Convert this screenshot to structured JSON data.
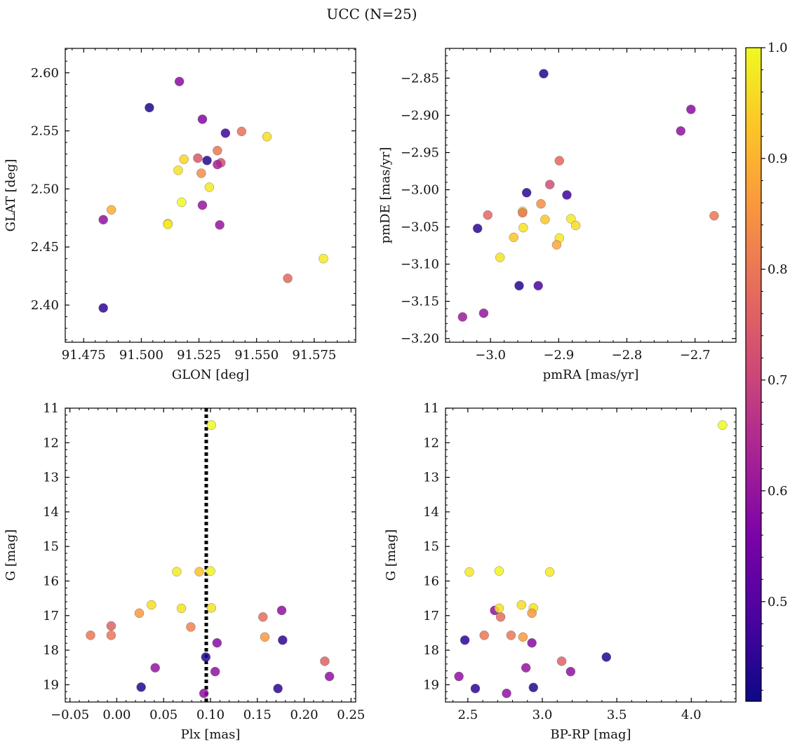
{
  "figure": {
    "title": "UCC (N=25)"
  },
  "colorbar": {
    "cmap": "plasma",
    "range": [
      0.41,
      1.0
    ],
    "ticks": [
      0.5,
      0.6,
      0.7,
      0.8,
      0.9,
      1.0
    ],
    "tick_labels": [
      "0.5",
      "0.6",
      "0.7",
      "0.8",
      "0.9",
      "1.0"
    ]
  },
  "chart_data": [
    {
      "type": "scatter",
      "xlabel": "GLON [deg]",
      "ylabel": "GLAT [deg]",
      "xlim": [
        91.467,
        91.593
      ],
      "ylim": [
        2.368,
        2.621
      ],
      "xticks": [
        91.475,
        91.5,
        91.525,
        91.55,
        91.575
      ],
      "xtick_labels": [
        "91.475",
        "91.500",
        "91.525",
        "91.550",
        "91.575"
      ],
      "yticks": [
        2.4,
        2.45,
        2.5,
        2.55,
        2.6
      ],
      "ytick_labels": [
        "2.40",
        "2.45",
        "2.50",
        "2.55",
        "2.60"
      ],
      "x_minor_step": 0.005,
      "y_minor_step": 0.01,
      "points": [
        {
          "x": 91.5165,
          "y": 2.5925,
          "c": 0.58
        },
        {
          "x": 91.5035,
          "y": 2.57,
          "c": 0.43
        },
        {
          "x": 91.5265,
          "y": 2.56,
          "c": 0.57
        },
        {
          "x": 91.5365,
          "y": 2.548,
          "c": 0.47
        },
        {
          "x": 91.5435,
          "y": 2.5495,
          "c": 0.79
        },
        {
          "x": 91.5545,
          "y": 2.545,
          "c": 0.96
        },
        {
          "x": 91.533,
          "y": 2.533,
          "c": 0.8
        },
        {
          "x": 91.5245,
          "y": 2.5265,
          "c": 0.74
        },
        {
          "x": 91.5185,
          "y": 2.5255,
          "c": 0.95
        },
        {
          "x": 91.5285,
          "y": 2.5245,
          "c": 0.44
        },
        {
          "x": 91.5345,
          "y": 2.5225,
          "c": 0.72
        },
        {
          "x": 91.533,
          "y": 2.521,
          "c": 0.63
        },
        {
          "x": 91.516,
          "y": 2.516,
          "c": 0.97
        },
        {
          "x": 91.526,
          "y": 2.5135,
          "c": 0.84
        },
        {
          "x": 91.5295,
          "y": 2.5015,
          "c": 0.98
        },
        {
          "x": 91.5175,
          "y": 2.4885,
          "c": 1.0
        },
        {
          "x": 91.5265,
          "y": 2.486,
          "c": 0.6
        },
        {
          "x": 91.487,
          "y": 2.482,
          "c": 0.89
        },
        {
          "x": 91.4835,
          "y": 2.4735,
          "c": 0.59
        },
        {
          "x": 91.5115,
          "y": 2.47,
          "c": 0.9
        },
        {
          "x": 91.5115,
          "y": 2.4695,
          "c": 0.99
        },
        {
          "x": 91.534,
          "y": 2.469,
          "c": 0.6
        },
        {
          "x": 91.579,
          "y": 2.44,
          "c": 0.98
        },
        {
          "x": 91.5635,
          "y": 2.423,
          "c": 0.77
        },
        {
          "x": 91.4835,
          "y": 2.3975,
          "c": 0.45
        }
      ]
    },
    {
      "type": "scatter",
      "xlabel": "pmRA [mas/yr]",
      "ylabel": "pmDE [mas/yr]",
      "xlim": [
        -3.066,
        -2.64
      ],
      "ylim": [
        -3.205,
        -2.81
      ],
      "xticks": [
        -3.0,
        -2.9,
        -2.8,
        -2.7
      ],
      "xtick_labels": [
        "−3.0",
        "−2.9",
        "−2.8",
        "−2.7"
      ],
      "yticks": [
        -3.2,
        -3.15,
        -3.1,
        -3.05,
        -3.0,
        -2.95,
        -2.9,
        -2.85
      ],
      "ytick_labels": [
        "−3.20",
        "−3.15",
        "−3.10",
        "−3.05",
        "−3.00",
        "−2.95",
        "−2.90",
        "−2.85"
      ],
      "x_minor_step": 0.02,
      "y_minor_step": 0.01,
      "points": [
        {
          "x": -2.922,
          "y": -2.844,
          "c": 0.44
        },
        {
          "x": -2.706,
          "y": -2.892,
          "c": 0.58
        },
        {
          "x": -2.721,
          "y": -2.921,
          "c": 0.59
        },
        {
          "x": -2.899,
          "y": -2.961,
          "c": 0.77
        },
        {
          "x": -2.913,
          "y": -2.993,
          "c": 0.72
        },
        {
          "x": -2.947,
          "y": -3.004,
          "c": 0.45
        },
        {
          "x": -2.888,
          "y": -3.007,
          "c": 0.47
        },
        {
          "x": -2.926,
          "y": -3.019,
          "c": 0.84
        },
        {
          "x": -2.953,
          "y": -3.029,
          "c": 0.96
        },
        {
          "x": -2.953,
          "y": -3.031,
          "c": 0.8
        },
        {
          "x": -3.004,
          "y": -3.034,
          "c": 0.77
        },
        {
          "x": -2.672,
          "y": -3.035,
          "c": 0.8
        },
        {
          "x": -2.882,
          "y": -3.039,
          "c": 0.98
        },
        {
          "x": -2.92,
          "y": -3.04,
          "c": 0.93
        },
        {
          "x": -2.875,
          "y": -3.048,
          "c": 0.96
        },
        {
          "x": -2.952,
          "y": -3.051,
          "c": 0.97
        },
        {
          "x": -3.019,
          "y": -3.052,
          "c": 0.45
        },
        {
          "x": -2.966,
          "y": -3.064,
          "c": 0.93
        },
        {
          "x": -2.899,
          "y": -3.065,
          "c": 0.98
        },
        {
          "x": -2.903,
          "y": -3.074,
          "c": 0.88
        },
        {
          "x": -2.986,
          "y": -3.091,
          "c": 0.97
        },
        {
          "x": -2.958,
          "y": -3.129,
          "c": 0.44
        },
        {
          "x": -2.93,
          "y": -3.129,
          "c": 0.49
        },
        {
          "x": -3.01,
          "y": -3.166,
          "c": 0.6
        },
        {
          "x": -3.041,
          "y": -3.171,
          "c": 0.61
        }
      ]
    },
    {
      "type": "scatter",
      "xlabel": "Plx [mas]",
      "ylabel": "G [mag]",
      "xlim": [
        -0.055,
        0.255
      ],
      "ylim": [
        19.5,
        11.0
      ],
      "y_inverted": true,
      "xticks": [
        -0.05,
        0.0,
        0.05,
        0.1,
        0.15,
        0.2,
        0.25
      ],
      "xtick_labels": [
        "−0.05",
        "0.00",
        "0.05",
        "0.10",
        "0.15",
        "0.20",
        "0.25"
      ],
      "yticks": [
        11,
        12,
        13,
        14,
        15,
        16,
        17,
        18,
        19
      ],
      "ytick_labels": [
        "11",
        "12",
        "13",
        "14",
        "15",
        "16",
        "17",
        "18",
        "19"
      ],
      "x_minor_step": 0.01,
      "y_minor_step": 0.2,
      "vline": 0.0955,
      "points": [
        {
          "x": 0.101,
          "y": 11.49,
          "c": 1.0
        },
        {
          "x": 0.064,
          "y": 15.73,
          "c": 0.98
        },
        {
          "x": 0.088,
          "y": 15.73,
          "c": 0.92
        },
        {
          "x": 0.1,
          "y": 15.71,
          "c": 0.99
        },
        {
          "x": 0.037,
          "y": 16.69,
          "c": 0.96
        },
        {
          "x": 0.069,
          "y": 16.79,
          "c": 0.97
        },
        {
          "x": 0.101,
          "y": 16.78,
          "c": 0.97
        },
        {
          "x": 0.176,
          "y": 16.85,
          "c": 0.59
        },
        {
          "x": 0.024,
          "y": 16.93,
          "c": 0.86
        },
        {
          "x": 0.156,
          "y": 17.04,
          "c": 0.78
        },
        {
          "x": -0.006,
          "y": 17.3,
          "c": 0.76
        },
        {
          "x": 0.079,
          "y": 17.33,
          "c": 0.82
        },
        {
          "x": -0.028,
          "y": 17.57,
          "c": 0.8
        },
        {
          "x": -0.006,
          "y": 17.57,
          "c": 0.8
        },
        {
          "x": 0.158,
          "y": 17.62,
          "c": 0.86
        },
        {
          "x": 0.177,
          "y": 17.71,
          "c": 0.45
        },
        {
          "x": 0.107,
          "y": 17.79,
          "c": 0.58
        },
        {
          "x": 0.095,
          "y": 18.2,
          "c": 0.44
        },
        {
          "x": 0.222,
          "y": 18.32,
          "c": 0.76
        },
        {
          "x": 0.041,
          "y": 18.51,
          "c": 0.6
        },
        {
          "x": 0.105,
          "y": 18.62,
          "c": 0.59
        },
        {
          "x": 0.227,
          "y": 18.76,
          "c": 0.59
        },
        {
          "x": 0.026,
          "y": 19.07,
          "c": 0.44
        },
        {
          "x": 0.172,
          "y": 19.11,
          "c": 0.45
        },
        {
          "x": 0.093,
          "y": 19.25,
          "c": 0.59
        }
      ]
    },
    {
      "type": "scatter",
      "xlabel": "BP-RP [mag]",
      "ylabel": "G [mag]",
      "xlim": [
        2.35,
        4.3
      ],
      "ylim": [
        19.5,
        11.0
      ],
      "y_inverted": true,
      "xticks": [
        2.5,
        3.0,
        3.5,
        4.0
      ],
      "xtick_labels": [
        "2.5",
        "3.0",
        "3.5",
        "4.0"
      ],
      "yticks": [
        11,
        12,
        13,
        14,
        15,
        16,
        17,
        18,
        19
      ],
      "ytick_labels": [
        "11",
        "12",
        "13",
        "14",
        "15",
        "16",
        "17",
        "18",
        "19"
      ],
      "x_minor_step": 0.1,
      "y_minor_step": 0.2,
      "points": [
        {
          "x": 4.21,
          "y": 11.49,
          "c": 1.0
        },
        {
          "x": 2.51,
          "y": 15.74,
          "c": 0.98
        },
        {
          "x": 2.71,
          "y": 15.71,
          "c": 0.99
        },
        {
          "x": 3.05,
          "y": 15.74,
          "c": 0.98
        },
        {
          "x": 2.86,
          "y": 16.69,
          "c": 0.96
        },
        {
          "x": 2.68,
          "y": 16.85,
          "c": 0.59
        },
        {
          "x": 2.71,
          "y": 16.79,
          "c": 0.97
        },
        {
          "x": 2.94,
          "y": 16.78,
          "c": 0.97
        },
        {
          "x": 2.93,
          "y": 16.93,
          "c": 0.86
        },
        {
          "x": 2.72,
          "y": 17.04,
          "c": 0.78
        },
        {
          "x": 2.61,
          "y": 17.57,
          "c": 0.8
        },
        {
          "x": 2.79,
          "y": 17.57,
          "c": 0.8
        },
        {
          "x": 2.87,
          "y": 17.62,
          "c": 0.86
        },
        {
          "x": 2.48,
          "y": 17.71,
          "c": 0.45
        },
        {
          "x": 2.93,
          "y": 17.79,
          "c": 0.58
        },
        {
          "x": 3.43,
          "y": 18.2,
          "c": 0.44
        },
        {
          "x": 3.13,
          "y": 18.32,
          "c": 0.76
        },
        {
          "x": 2.89,
          "y": 18.51,
          "c": 0.6
        },
        {
          "x": 3.19,
          "y": 18.62,
          "c": 0.59
        },
        {
          "x": 2.44,
          "y": 18.76,
          "c": 0.59
        },
        {
          "x": 2.55,
          "y": 19.11,
          "c": 0.45
        },
        {
          "x": 2.94,
          "y": 19.08,
          "c": 0.44
        },
        {
          "x": 2.76,
          "y": 19.25,
          "c": 0.59
        }
      ]
    }
  ]
}
